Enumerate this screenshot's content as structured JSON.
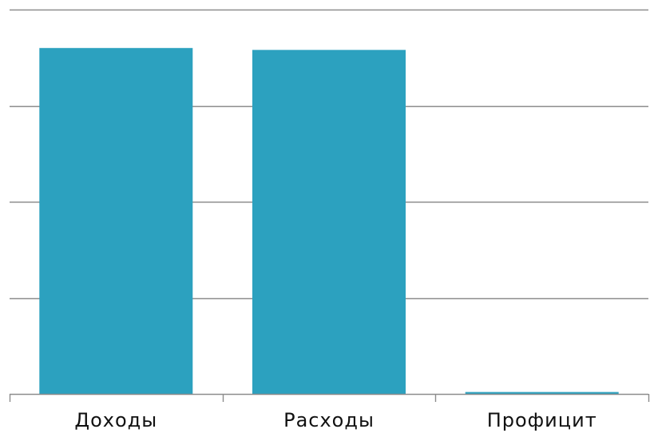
{
  "chart_data": {
    "type": "bar",
    "title": "",
    "xlabel": "",
    "ylabel": "",
    "categories": [
      "Доходы",
      "Расходы",
      "Профицит"
    ],
    "values": [
      7.2,
      7.16,
      0.04
    ],
    "ylim": [
      0,
      8
    ],
    "gridlines": [
      0,
      2,
      4,
      6,
      8
    ],
    "grid": true,
    "show_y_tick_labels": false,
    "legend": "none",
    "bar_color": "#2ca1bf"
  }
}
